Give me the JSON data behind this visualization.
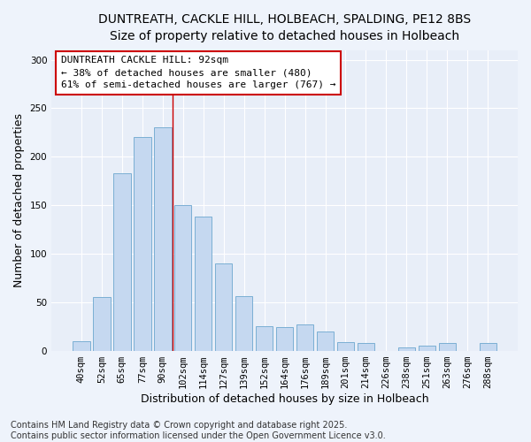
{
  "title1": "DUNTREATH, CACKLE HILL, HOLBEACH, SPALDING, PE12 8BS",
  "title2": "Size of property relative to detached houses in Holbeach",
  "xlabel": "Distribution of detached houses by size in Holbeach",
  "ylabel": "Number of detached properties",
  "categories": [
    "40sqm",
    "52sqm",
    "65sqm",
    "77sqm",
    "90sqm",
    "102sqm",
    "114sqm",
    "127sqm",
    "139sqm",
    "152sqm",
    "164sqm",
    "176sqm",
    "189sqm",
    "201sqm",
    "214sqm",
    "226sqm",
    "238sqm",
    "251sqm",
    "263sqm",
    "276sqm",
    "288sqm"
  ],
  "values": [
    10,
    55,
    183,
    220,
    230,
    150,
    138,
    90,
    56,
    25,
    24,
    27,
    20,
    9,
    8,
    0,
    3,
    5,
    8,
    0,
    8
  ],
  "bar_color": "#c5d8f0",
  "bar_edge_color": "#7bafd4",
  "property_line_x": 4.5,
  "annotation_line1": "DUNTREATH CACKLE HILL: 92sqm",
  "annotation_line2": "← 38% of detached houses are smaller (480)",
  "annotation_line3": "61% of semi-detached houses are larger (767) →",
  "annotation_box_color": "#ffffff",
  "annotation_box_edge": "#cc0000",
  "red_line_color": "#cc0000",
  "footer1": "Contains HM Land Registry data © Crown copyright and database right 2025.",
  "footer2": "Contains public sector information licensed under the Open Government Licence v3.0.",
  "ylim": [
    0,
    310
  ],
  "yticks": [
    0,
    50,
    100,
    150,
    200,
    250,
    300
  ],
  "bg_color": "#e8eef8",
  "fig_bg_color": "#eef3fb",
  "title_fontsize": 10,
  "subtitle_fontsize": 9.5,
  "label_fontsize": 9,
  "tick_fontsize": 7.5,
  "annotation_fontsize": 8,
  "footer_fontsize": 7
}
